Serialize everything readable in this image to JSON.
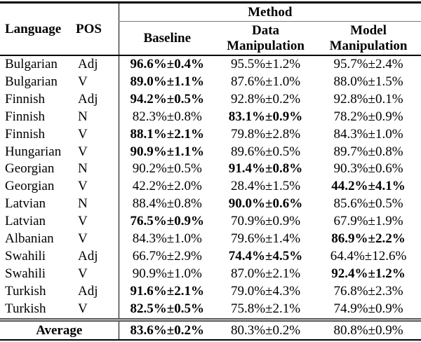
{
  "colors": {
    "text": "#000000",
    "background": "#ffffff",
    "rule_black": "#000000",
    "rule_gray": "#7a7a7a"
  },
  "table": {
    "header": {
      "language_label": "Language",
      "pos_label": "POS",
      "method_label": "Method",
      "method_columns": [
        "Baseline",
        "Data Manipulation",
        "Model Manipulation"
      ]
    },
    "rows": [
      {
        "language": "Bulgarian",
        "pos": "Adj",
        "values": [
          {
            "text": "96.6%±0.4%",
            "bold": true
          },
          {
            "text": "95.5%±1.2%",
            "bold": false
          },
          {
            "text": "95.7%±2.4%",
            "bold": false
          }
        ]
      },
      {
        "language": "Bulgarian",
        "pos": "V",
        "values": [
          {
            "text": "89.0%±1.1%",
            "bold": true
          },
          {
            "text": "87.6%±1.0%",
            "bold": false
          },
          {
            "text": "88.0%±1.5%",
            "bold": false
          }
        ]
      },
      {
        "language": "Finnish",
        "pos": "Adj",
        "values": [
          {
            "text": "94.2%±0.5%",
            "bold": true
          },
          {
            "text": "92.8%±0.2%",
            "bold": false
          },
          {
            "text": "92.8%±0.1%",
            "bold": false
          }
        ]
      },
      {
        "language": "Finnish",
        "pos": "N",
        "values": [
          {
            "text": "82.3%±0.8%",
            "bold": false
          },
          {
            "text": "83.1%±0.9%",
            "bold": true
          },
          {
            "text": "78.2%±0.9%",
            "bold": false
          }
        ]
      },
      {
        "language": "Finnish",
        "pos": "V",
        "values": [
          {
            "text": "88.1%±2.1%",
            "bold": true
          },
          {
            "text": "79.8%±2.8%",
            "bold": false
          },
          {
            "text": "84.3%±1.0%",
            "bold": false
          }
        ]
      },
      {
        "language": "Hungarian",
        "pos": "V",
        "values": [
          {
            "text": "90.9%±1.1%",
            "bold": true
          },
          {
            "text": "89.6%±0.5%",
            "bold": false
          },
          {
            "text": "89.7%±0.8%",
            "bold": false
          }
        ]
      },
      {
        "language": "Georgian",
        "pos": "N",
        "values": [
          {
            "text": "90.2%±0.5%",
            "bold": false
          },
          {
            "text": "91.4%±0.8%",
            "bold": true
          },
          {
            "text": "90.3%±0.6%",
            "bold": false
          }
        ]
      },
      {
        "language": "Georgian",
        "pos": "V",
        "values": [
          {
            "text": "42.2%±2.0%",
            "bold": false
          },
          {
            "text": "28.4%±1.5%",
            "bold": false
          },
          {
            "text": "44.2%±4.1%",
            "bold": true
          }
        ]
      },
      {
        "language": "Latvian",
        "pos": "N",
        "values": [
          {
            "text": "88.4%±0.8%",
            "bold": false
          },
          {
            "text": "90.0%±0.6%",
            "bold": true
          },
          {
            "text": "85.6%±0.5%",
            "bold": false
          }
        ]
      },
      {
        "language": "Latvian",
        "pos": "V",
        "values": [
          {
            "text": "76.5%±0.9%",
            "bold": true
          },
          {
            "text": "70.9%±0.9%",
            "bold": false
          },
          {
            "text": "67.9%±1.9%",
            "bold": false
          }
        ]
      },
      {
        "language": "Albanian",
        "pos": "V",
        "values": [
          {
            "text": "84.3%±1.0%",
            "bold": false
          },
          {
            "text": "79.6%±1.4%",
            "bold": false
          },
          {
            "text": "86.9%±2.2%",
            "bold": true
          }
        ]
      },
      {
        "language": "Swahili",
        "pos": "Adj",
        "values": [
          {
            "text": "66.7%±2.9%",
            "bold": false
          },
          {
            "text": "74.4%±4.5%",
            "bold": true
          },
          {
            "text": "64.4%±12.6%",
            "bold": false
          }
        ]
      },
      {
        "language": "Swahili",
        "pos": "V",
        "values": [
          {
            "text": "90.9%±1.0%",
            "bold": false
          },
          {
            "text": "87.0%±2.1%",
            "bold": false
          },
          {
            "text": "92.4%±1.2%",
            "bold": true
          }
        ]
      },
      {
        "language": "Turkish",
        "pos": "Adj",
        "values": [
          {
            "text": "91.6%±2.1%",
            "bold": true
          },
          {
            "text": "79.0%±4.3%",
            "bold": false
          },
          {
            "text": "76.8%±2.3%",
            "bold": false
          }
        ]
      },
      {
        "language": "Turkish",
        "pos": "V",
        "values": [
          {
            "text": "82.5%±0.5%",
            "bold": true
          },
          {
            "text": "75.8%±2.1%",
            "bold": false
          },
          {
            "text": "74.9%±0.9%",
            "bold": false
          }
        ]
      }
    ],
    "average_row": {
      "label": "Average",
      "values": [
        {
          "text": "83.6%±0.2%",
          "bold": true
        },
        {
          "text": "80.3%±0.2%",
          "bold": false
        },
        {
          "text": "80.8%±0.9%",
          "bold": false
        }
      ]
    }
  }
}
